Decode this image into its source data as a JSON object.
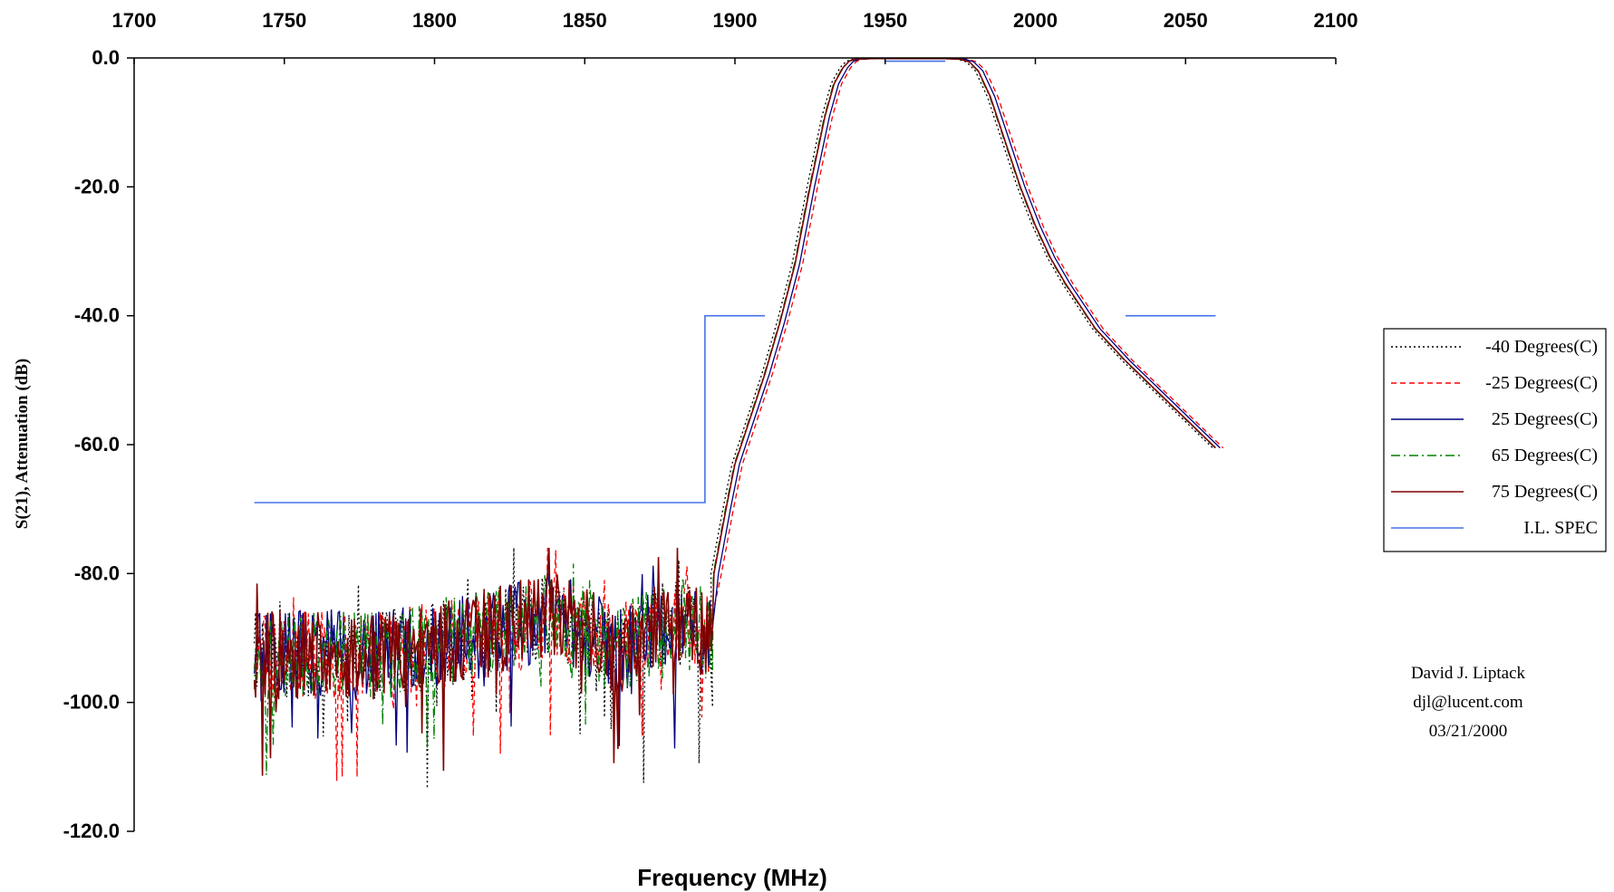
{
  "chart_data": {
    "type": "line",
    "title": "",
    "xlabel": "Frequency (MHz)",
    "ylabel": "S(21), Attenuation (dB)",
    "xlim": [
      1700,
      2100
    ],
    "ylim": [
      -120,
      0
    ],
    "x_ticks": [
      "1700",
      "1750",
      "1800",
      "1850",
      "1900",
      "1950",
      "2000",
      "2050",
      "2100"
    ],
    "y_ticks": [
      "0.0",
      "-20.0",
      "-40.0",
      "-60.0",
      "-80.0",
      "-100.0",
      "-120.0"
    ],
    "x_axis_position": "top",
    "grid": false,
    "legend_position": "right",
    "series": [
      {
        "name": "-40 Degrees(C)",
        "color": "#000000",
        "dash": "dotted",
        "shift_mhz": -1.0,
        "noise_range_mhz": [
          1740,
          1893
        ],
        "x": [
          1893,
          1897,
          1900,
          1905,
          1910,
          1915,
          1920,
          1925,
          1930,
          1933,
          1936,
          1938,
          1940,
          1945,
          1950,
          1955,
          1960,
          1965,
          1970,
          1975,
          1978,
          1981,
          1985,
          1990,
          1995,
          2000,
          2005,
          2010,
          2020,
          2030,
          2040,
          2050,
          2060
        ],
        "y": [
          -80,
          -70,
          -63,
          -56,
          -49,
          -41,
          -32,
          -20,
          -9,
          -4,
          -1.5,
          -0.5,
          -0.2,
          -0.1,
          -0.1,
          -0.1,
          -0.1,
          -0.1,
          -0.1,
          -0.2,
          -0.6,
          -2,
          -6,
          -13,
          -20,
          -26,
          -31,
          -35,
          -42,
          -47,
          -51.5,
          -56,
          -60.5
        ]
      },
      {
        "name": "-25 Degrees(C)",
        "color": "#ff0000",
        "dash": "dashed",
        "shift_mhz": 2.5,
        "noise_range_mhz": [
          1740,
          1893
        ],
        "x": [
          1893,
          1897,
          1900,
          1905,
          1910,
          1915,
          1920,
          1925,
          1930,
          1933,
          1936,
          1938,
          1940,
          1945,
          1950,
          1955,
          1960,
          1965,
          1970,
          1975,
          1978,
          1981,
          1985,
          1990,
          1995,
          2000,
          2005,
          2010,
          2020,
          2030,
          2040,
          2050,
          2060
        ],
        "y": [
          -80,
          -70,
          -63,
          -56,
          -49,
          -41,
          -32,
          -20,
          -9,
          -4,
          -1.5,
          -0.5,
          -0.2,
          -0.1,
          -0.1,
          -0.1,
          -0.1,
          -0.1,
          -0.1,
          -0.2,
          -0.6,
          -2,
          -6,
          -13,
          -20,
          -26,
          -31,
          -35,
          -42,
          -47,
          -51.5,
          -56,
          -60.5
        ]
      },
      {
        "name": "25 Degrees(C)",
        "color": "#000080",
        "dash": "solid",
        "shift_mhz": 1.5,
        "noise_range_mhz": [
          1740,
          1893
        ],
        "x": [
          1893,
          1897,
          1900,
          1905,
          1910,
          1915,
          1920,
          1925,
          1930,
          1933,
          1936,
          1938,
          1940,
          1945,
          1950,
          1955,
          1960,
          1965,
          1970,
          1975,
          1978,
          1981,
          1985,
          1990,
          1995,
          2000,
          2005,
          2010,
          2020,
          2030,
          2040,
          2050,
          2060
        ],
        "y": [
          -80,
          -70,
          -63,
          -56,
          -49,
          -41,
          -32,
          -20,
          -9,
          -4,
          -1.5,
          -0.5,
          -0.2,
          -0.1,
          -0.1,
          -0.1,
          -0.1,
          -0.1,
          -0.1,
          -0.2,
          -0.6,
          -2,
          -6,
          -13,
          -20,
          -26,
          -31,
          -35,
          -42,
          -47,
          -51.5,
          -56,
          -60.5
        ]
      },
      {
        "name": "65 Degrees(C)",
        "color": "#008000",
        "dash": "dashdot",
        "shift_mhz": -0.2,
        "noise_range_mhz": [
          1740,
          1893
        ],
        "x": [
          1893,
          1897,
          1900,
          1905,
          1910,
          1915,
          1920,
          1925,
          1930,
          1933,
          1936,
          1938,
          1940,
          1945,
          1950,
          1955,
          1960,
          1965,
          1970,
          1975,
          1978,
          1981,
          1985,
          1990,
          1995,
          2000,
          2005,
          2010,
          2020,
          2030,
          2040,
          2050,
          2060
        ],
        "y": [
          -80,
          -70,
          -63,
          -56,
          -49,
          -41,
          -32,
          -20,
          -9,
          -4,
          -1.5,
          -0.5,
          -0.2,
          -0.1,
          -0.1,
          -0.1,
          -0.1,
          -0.1,
          -0.1,
          -0.2,
          -0.6,
          -2,
          -6,
          -13,
          -20,
          -26,
          -31,
          -35,
          -42,
          -47,
          -51.5,
          -56,
          -60.5
        ]
      },
      {
        "name": "75 Degrees(C)",
        "color": "#800000",
        "dash": "solid",
        "shift_mhz": 0.0,
        "noise_range_mhz": [
          1740,
          1893
        ],
        "x": [
          1893,
          1897,
          1900,
          1905,
          1910,
          1915,
          1920,
          1925,
          1930,
          1933,
          1936,
          1938,
          1940,
          1945,
          1950,
          1955,
          1960,
          1965,
          1970,
          1975,
          1978,
          1981,
          1985,
          1990,
          1995,
          2000,
          2005,
          2010,
          2020,
          2030,
          2040,
          2050,
          2060
        ],
        "y": [
          -80,
          -70,
          -63,
          -56,
          -49,
          -41,
          -32,
          -20,
          -9,
          -4,
          -1.5,
          -0.5,
          -0.2,
          -0.1,
          -0.1,
          -0.1,
          -0.1,
          -0.1,
          -0.1,
          -0.2,
          -0.6,
          -2,
          -6,
          -13,
          -20,
          -26,
          -31,
          -35,
          -42,
          -47,
          -51.5,
          -56,
          -60.5
        ]
      },
      {
        "name": "I.L. SPEC",
        "color": "#4472e8",
        "dash": "solid",
        "segments": [
          {
            "x": [
              1740,
              1890,
              1890,
              1910
            ],
            "y": [
              -69,
              -69,
              -40,
              -40
            ]
          },
          {
            "x": [
              1950,
              1970
            ],
            "y": [
              -0.5,
              -0.5
            ]
          },
          {
            "x": [
              2030,
              2060
            ],
            "y": [
              -40,
              -40
            ]
          }
        ]
      }
    ],
    "noise_band_db": {
      "center_profile_x": [
        1740,
        1760,
        1780,
        1800,
        1820,
        1840,
        1860,
        1880,
        1893
      ],
      "center_profile_y": [
        -93,
        -92,
        -93,
        -91,
        -89,
        -86,
        -92,
        -87,
        -90
      ],
      "min": -120,
      "max": -76
    }
  },
  "annotation": {
    "line1": "David J. Liptack",
    "line2": "djl@lucent.com",
    "line3": "03/21/2000"
  }
}
